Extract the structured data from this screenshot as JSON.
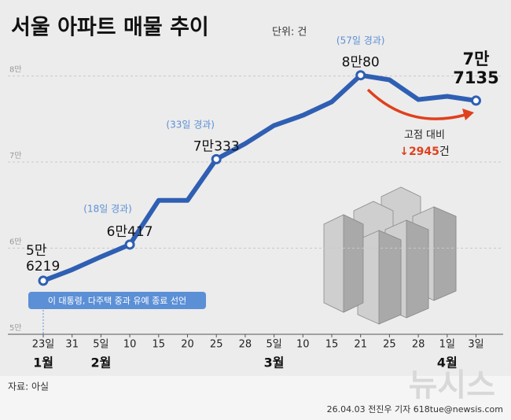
{
  "chart_data": {
    "type": "line",
    "title": "서울 아파트 매물 추이",
    "unit": "단위: 건",
    "categories": [
      "23일",
      "31",
      "5일",
      "10",
      "15",
      "20",
      "25",
      "28",
      "5일",
      "10",
      "15",
      "21",
      "25",
      "28",
      "1일",
      "3일"
    ],
    "months": [
      {
        "label": "1월",
        "index": 0
      },
      {
        "label": "2월",
        "index": 2
      },
      {
        "label": "3월",
        "index": 8
      },
      {
        "label": "4월",
        "index": 14
      }
    ],
    "series": [
      {
        "color": "#2f5fb3",
        "values": [
          56219,
          57500,
          59000,
          60417,
          65550,
          65550,
          70333,
          72140,
          74250,
          75430,
          76990,
          80080,
          79550,
          77260,
          77630,
          77135
        ],
        "value_labels": [
          "5만\n6219",
          null,
          null,
          "6만417",
          null,
          null,
          "7만333",
          null,
          null,
          null,
          null,
          "8만80",
          null,
          null,
          null,
          "7만\n7135"
        ]
      }
    ],
    "ylim": [
      50000,
      80600
    ],
    "yticks": [
      {
        "value": 50000,
        "label": "5만"
      },
      {
        "value": 60000,
        "label": "6만"
      },
      {
        "value": 70000,
        "label": "7만"
      },
      {
        "value": 80000,
        "label": "8만"
      }
    ],
    "grid": true,
    "annotations": {
      "elapsed_18": "(18일 경과)",
      "elapsed_33": "(33일 경과)",
      "elapsed_57": "(57일 경과)",
      "event": "이 대통령, 다주택 중과 유예 종료 선언",
      "peak_compare": "고점 대비",
      "drop_arrow": "↓",
      "drop": 2945,
      "drop_unit": "건"
    },
    "source": "자료: 아실",
    "credit": "26.04.03 전진우 기자 618tue@newsis.com",
    "watermark": "뉴시스"
  }
}
